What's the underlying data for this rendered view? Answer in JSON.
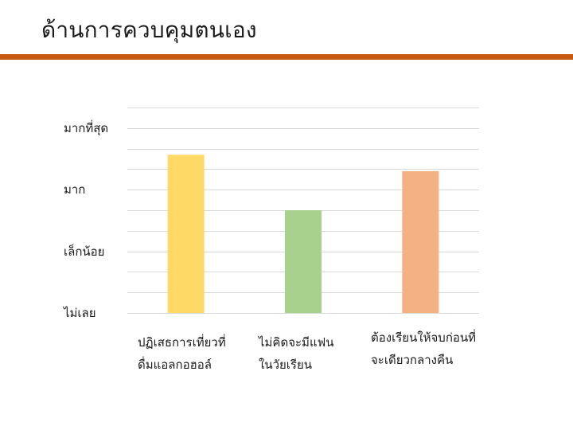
{
  "slide": {
    "title": "ด้านการควบคุมตนเอง",
    "accent_color": "#C55A11"
  },
  "chart_data": {
    "type": "bar",
    "categories": [
      [
        "ปฏิเสธการเที่ยวที่",
        "ดื่มแอลกอฮอล์"
      ],
      [
        "ไม่คิดจะมีแฟน",
        "ในวัยเรียน"
      ],
      [
        "ต้องเรียนให้จบก่อนที่",
        "จะเดียวกลางคืน"
      ]
    ],
    "values": [
      3.85,
      2.5,
      3.45
    ],
    "bar_colors": [
      "#FFD966",
      "#A9D18E",
      "#F4B183"
    ],
    "y_tick_labels": [
      {
        "value": 0,
        "label": "ไม่เลย"
      },
      {
        "value": 1.5,
        "label": "เล็กน้อย"
      },
      {
        "value": 3,
        "label": "มาก"
      },
      {
        "value": 4.5,
        "label": "มากที่สุด"
      }
    ],
    "ylim": [
      0,
      5
    ],
    "grid": true,
    "gridline_step": 0.5,
    "title": "",
    "xlabel": "",
    "ylabel": ""
  }
}
